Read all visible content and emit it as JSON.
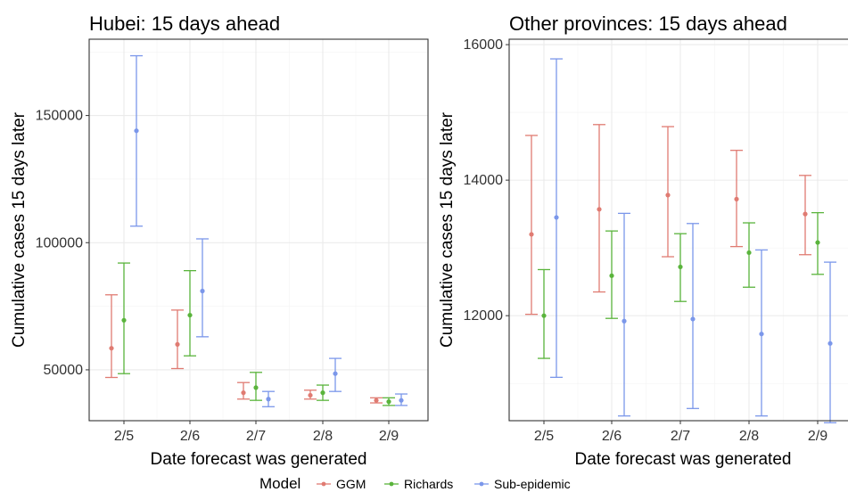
{
  "colors": {
    "GGM": "#e07b72",
    "Richards": "#5ab43c",
    "Sub-epidemic": "#7b97ea"
  },
  "legend": {
    "title": "Model",
    "items": [
      {
        "key": "GGM",
        "label": "GGM"
      },
      {
        "key": "Richards",
        "label": "Richards"
      },
      {
        "key": "Sub-epidemic",
        "label": "Sub-epidemic"
      }
    ]
  },
  "chart_data": [
    {
      "type": "errorbar",
      "title": "Hubei: 15 days ahead",
      "xlabel": "Date forecast was generated",
      "ylabel": "Cumulative cases 15 days later",
      "categories": [
        "2/5",
        "2/6",
        "2/7",
        "2/8",
        "2/9"
      ],
      "ylim": [
        30000,
        180000
      ],
      "y_ticks": [
        50000,
        100000,
        150000
      ],
      "y_tick_labels": [
        "50000",
        "100000",
        "150000"
      ],
      "grid": true,
      "series": [
        {
          "name": "GGM",
          "points": [
            {
              "x": "2/5",
              "y": 58500,
              "lo": 47000,
              "hi": 79500
            },
            {
              "x": "2/6",
              "y": 60000,
              "lo": 50500,
              "hi": 73500
            },
            {
              "x": "2/7",
              "y": 41000,
              "lo": 38500,
              "hi": 45000
            },
            {
              "x": "2/8",
              "y": 40000,
              "lo": 38500,
              "hi": 42000
            },
            {
              "x": "2/9",
              "y": 38000,
              "lo": 37000,
              "hi": 39000
            }
          ]
        },
        {
          "name": "Richards",
          "points": [
            {
              "x": "2/5",
              "y": 69500,
              "lo": 48500,
              "hi": 92000
            },
            {
              "x": "2/6",
              "y": 71500,
              "lo": 55500,
              "hi": 89000
            },
            {
              "x": "2/7",
              "y": 43000,
              "lo": 38000,
              "hi": 49000
            },
            {
              "x": "2/8",
              "y": 41000,
              "lo": 38000,
              "hi": 44000
            },
            {
              "x": "2/9",
              "y": 37500,
              "lo": 36000,
              "hi": 39000
            }
          ]
        },
        {
          "name": "Sub-epidemic",
          "points": [
            {
              "x": "2/5",
              "y": 144000,
              "lo": 106500,
              "hi": 173500
            },
            {
              "x": "2/6",
              "y": 81000,
              "lo": 63000,
              "hi": 101500
            },
            {
              "x": "2/7",
              "y": 38500,
              "lo": 35500,
              "hi": 41500
            },
            {
              "x": "2/8",
              "y": 48500,
              "lo": 41500,
              "hi": 54500
            },
            {
              "x": "2/9",
              "y": 38000,
              "lo": 36000,
              "hi": 40500
            }
          ]
        }
      ]
    },
    {
      "type": "errorbar",
      "title": "Other provinces: 15 days ahead",
      "xlabel": "Date forecast was generated",
      "ylabel": "Cumulative cases 15 days later",
      "categories": [
        "2/5",
        "2/6",
        "2/7",
        "2/8",
        "2/9"
      ],
      "ylim": [
        10450,
        16080
      ],
      "y_ticks": [
        12000,
        14000,
        16000
      ],
      "y_tick_labels": [
        "12000",
        "14000",
        "16000"
      ],
      "grid": true,
      "series": [
        {
          "name": "GGM",
          "points": [
            {
              "x": "2/5",
              "y": 13200,
              "lo": 12020,
              "hi": 14660
            },
            {
              "x": "2/6",
              "y": 13570,
              "lo": 12350,
              "hi": 14820
            },
            {
              "x": "2/7",
              "y": 13780,
              "lo": 12870,
              "hi": 14790
            },
            {
              "x": "2/8",
              "y": 13720,
              "lo": 13020,
              "hi": 14440
            },
            {
              "x": "2/9",
              "y": 13500,
              "lo": 12900,
              "hi": 14070
            }
          ]
        },
        {
          "name": "Richards",
          "points": [
            {
              "x": "2/5",
              "y": 12000,
              "lo": 11370,
              "hi": 12680
            },
            {
              "x": "2/6",
              "y": 12590,
              "lo": 11960,
              "hi": 13250
            },
            {
              "x": "2/7",
              "y": 12720,
              "lo": 12210,
              "hi": 13210
            },
            {
              "x": "2/8",
              "y": 12930,
              "lo": 12420,
              "hi": 13370
            },
            {
              "x": "2/9",
              "y": 13080,
              "lo": 12610,
              "hi": 13520
            }
          ]
        },
        {
          "name": "Sub-epidemic",
          "points": [
            {
              "x": "2/5",
              "y": 13450,
              "lo": 11090,
              "hi": 15790
            },
            {
              "x": "2/6",
              "y": 11920,
              "lo": 10520,
              "hi": 13510
            },
            {
              "x": "2/7",
              "y": 11950,
              "lo": 10630,
              "hi": 13360
            },
            {
              "x": "2/8",
              "y": 11730,
              "lo": 10520,
              "hi": 12970
            },
            {
              "x": "2/9",
              "y": 11590,
              "lo": 10420,
              "hi": 12790
            }
          ]
        }
      ]
    }
  ]
}
